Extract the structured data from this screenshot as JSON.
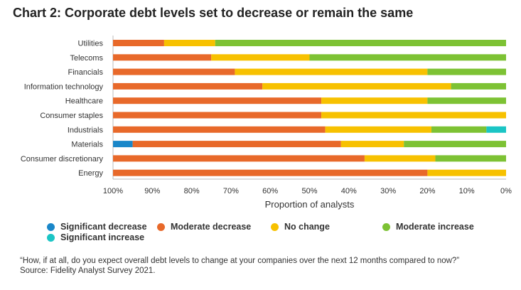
{
  "title": "Chart 2: Corporate debt levels set to decrease or remain the same",
  "chart_data": {
    "type": "bar",
    "orientation": "horizontal",
    "stacked": true,
    "categories": [
      "Utilities",
      "Telecoms",
      "Financials",
      "Information technology",
      "Healthcare",
      "Consumer staples",
      "Industrials",
      "Materials",
      "Consumer discretionary",
      "Energy"
    ],
    "series": [
      {
        "name": "Significant decrease",
        "color": "#1a87c9",
        "values": [
          0,
          0,
          0,
          0,
          0,
          0,
          0,
          5,
          0,
          0
        ]
      },
      {
        "name": "Moderate decrease",
        "color": "#e8692a",
        "values": [
          13,
          25,
          31,
          38,
          53,
          53,
          54,
          53,
          64,
          80
        ]
      },
      {
        "name": "No change",
        "color": "#f7c100",
        "values": [
          13,
          25,
          49,
          48,
          27,
          47,
          27,
          16,
          18,
          20
        ]
      },
      {
        "name": "Moderate increase",
        "color": "#7dc234",
        "values": [
          74,
          50,
          20,
          14,
          20,
          0,
          14,
          26,
          18,
          0
        ]
      },
      {
        "name": "Significant increase",
        "color": "#1bc5c5",
        "values": [
          0,
          0,
          0,
          0,
          0,
          0,
          5,
          0,
          0,
          0
        ]
      }
    ],
    "xlabel": "Proportion of analysts",
    "ticks": [
      "100%",
      "90%",
      "80%",
      "70%",
      "60%",
      "50%",
      "40%",
      "30%",
      "20%",
      "10%",
      "0%"
    ],
    "xlim": [
      100,
      0
    ],
    "grid": false,
    "legend_position": "bottom"
  },
  "footnote": {
    "question": "“How, if at all, do you expect overall debt levels to change at your companies over the next 12 months compared to now?”",
    "source": "Source: Fidelity Analyst Survey 2021."
  }
}
